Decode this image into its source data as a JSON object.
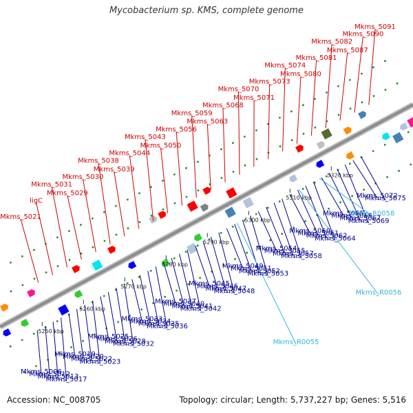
{
  "title": "Mycobacterium sp. KMS, complete genome",
  "footer": {
    "accession": "Accession: NC_008705",
    "info": "Topology: circular; Length: 5,737,227 bp; Genes: 5,516"
  },
  "colors": {
    "top_label": "#cc0000",
    "bottom_label": "#00008b",
    "rna_label": "#33b5d6",
    "axis": "#909090",
    "tick": "#228b22"
  },
  "scale_ticks": [
    "5250 kbp",
    "5260 kbp",
    "5270 kbp",
    "5280 kbp",
    "5290 kbp",
    "5300 kbp",
    "5310 kbp",
    "5320 kbp"
  ],
  "top_labels": [
    "Mkms_5021",
    "ligC",
    "Mkms_5031",
    "Mkms_5029",
    "Mkms_5030",
    "Mkms_5038",
    "Mkms_5039",
    "Mkms_5044",
    "Mkms_5043",
    "Mkms_5050",
    "Mkms_5056",
    "Mkms_5059",
    "Mkms_5063",
    "Mkms_5068",
    "Mkms_5070",
    "Mkms_5071",
    "Mkms_5073",
    "Mkms_5074",
    "Mkms_5080",
    "Mkms_5081",
    "Mkms_5082",
    "Mkms_5087",
    "Mkms_5090",
    "Mkms_5091"
  ],
  "bottom_labels": [
    "Mkms_5006",
    "Mkms_5012",
    "Mkms_5013",
    "Mkms_5017",
    "Mkms_5019",
    "Mkms_5020",
    "Mkms_5022",
    "Mkms_5023",
    "Mkms_5025",
    "Mkms_5026",
    "Mkms_5028",
    "Mkms_5032",
    "Mkms_5033",
    "Mkms_5034",
    "Mkms_5035",
    "Mkms_5036",
    "Mkms_5037",
    "Mkms_5040",
    "Mkms_5041",
    "Mkms_5042",
    "Mkms_5045",
    "Mkms_5046",
    "Mkms_5047",
    "Mkms_5048",
    "Mkms_5049",
    "Mkms_5051",
    "Mkms_5052",
    "Mkms_5053",
    "Mkms_5054",
    "Mkms_5055",
    "Mkms_5057",
    "Mkms_5058",
    "Mkms_5060",
    "Mkms_5061",
    "Mkms_5062",
    "Mkms_5064",
    "Mkms_5065",
    "Mkms_5066",
    "Mkms_5067",
    "Mkms_5069",
    "Mkms_5072",
    "Mkms_5075"
  ],
  "rna_labels": [
    "Mkms_R0055",
    "Mkms_R0056",
    "Mkms_R0058"
  ]
}
